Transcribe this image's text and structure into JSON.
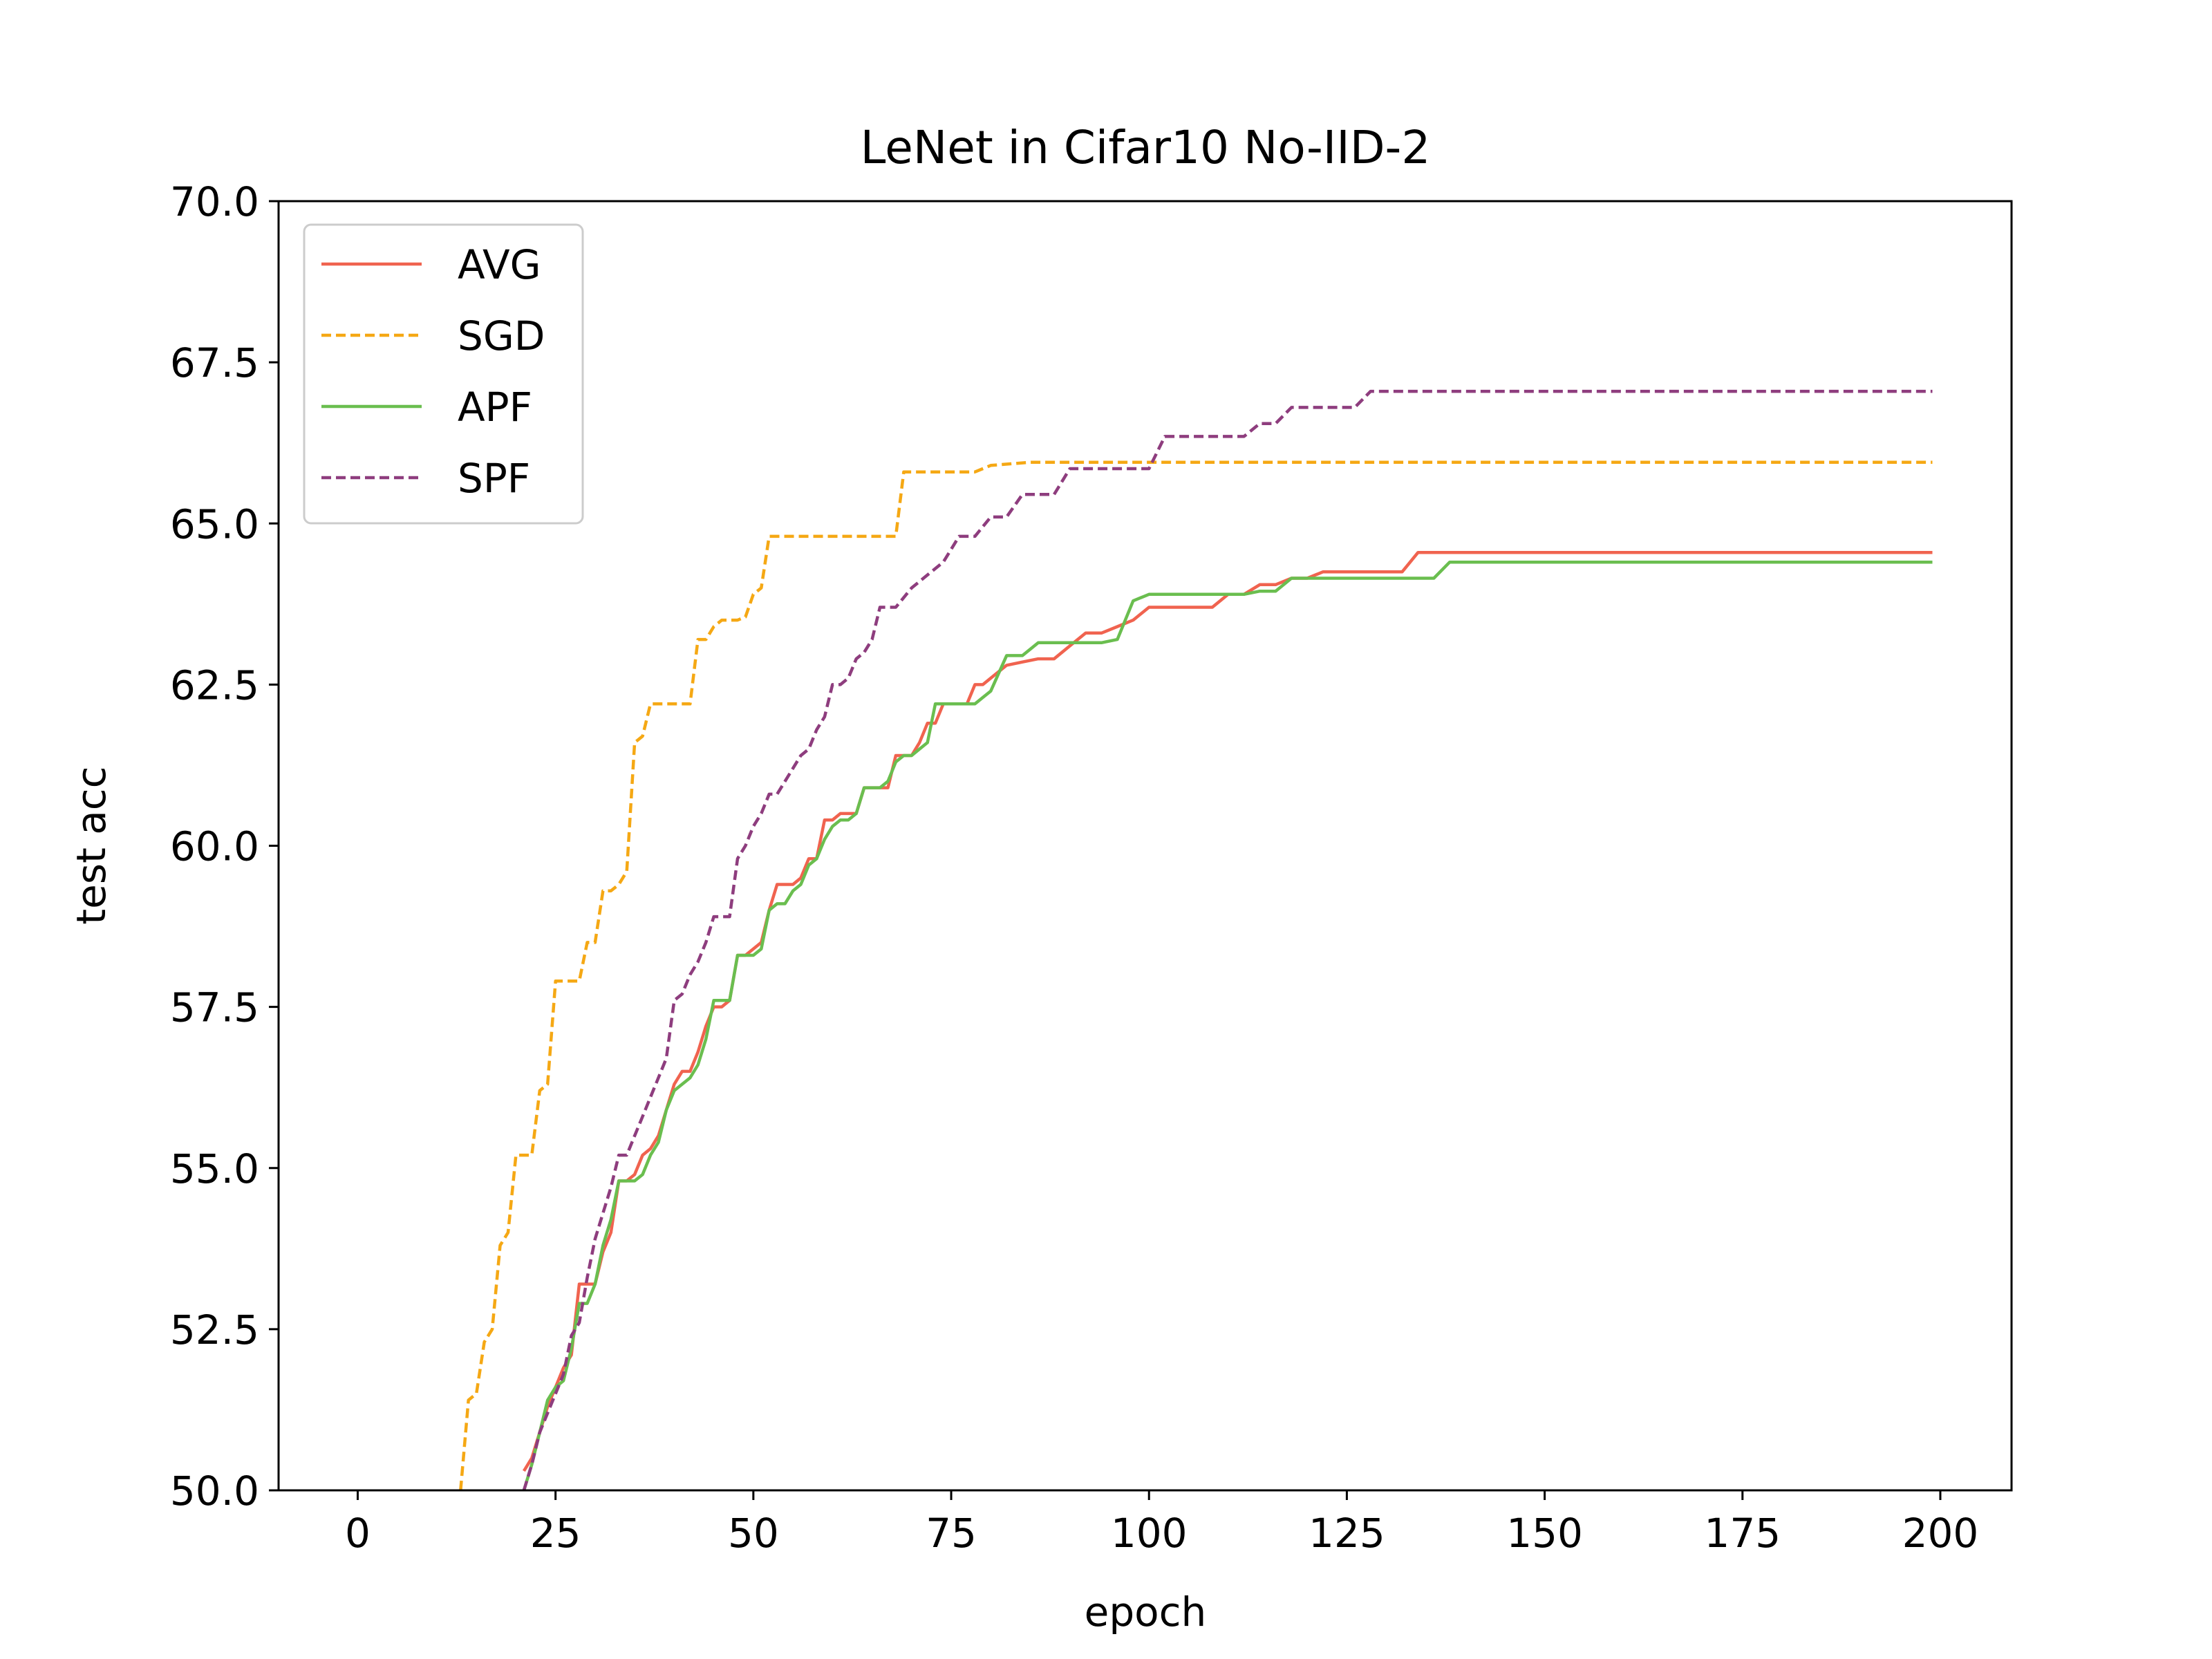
{
  "chart_data": {
    "type": "line",
    "title": "LeNet in Cifar10 No-IID-2",
    "xlabel": "epoch",
    "ylabel": "test acc",
    "xlim": [
      -10,
      209
    ],
    "ylim": [
      50.0,
      70.0
    ],
    "x_ticks": [
      0,
      25,
      50,
      75,
      100,
      125,
      150,
      175,
      200
    ],
    "x_tick_labels": [
      "0",
      "25",
      "50",
      "75",
      "100",
      "125",
      "150",
      "175",
      "200"
    ],
    "y_ticks": [
      50.0,
      52.5,
      55.0,
      57.5,
      60.0,
      62.5,
      65.0,
      67.5,
      70.0
    ],
    "y_tick_labels": [
      "50.0",
      "52.5",
      "55.0",
      "57.5",
      "60.0",
      "62.5",
      "65.0",
      "67.5",
      "70.0"
    ],
    "grid": false,
    "legend_position": "upper left",
    "series": [
      {
        "name": "AVG",
        "color": "#f0634f",
        "dash": "solid",
        "x": [
          21,
          22,
          23,
          24,
          25,
          26,
          27,
          28,
          29,
          30,
          31,
          32,
          33,
          34,
          35,
          36,
          37,
          38,
          39,
          40,
          41,
          42,
          43,
          44,
          45,
          46,
          47,
          48,
          49,
          50,
          51,
          52,
          53,
          54,
          55,
          56,
          57,
          58,
          59,
          60,
          61,
          62,
          63,
          64,
          65,
          66,
          67,
          68,
          69,
          70,
          71,
          72,
          73,
          74,
          75,
          76,
          77,
          78,
          79,
          80,
          82,
          84,
          86,
          88,
          90,
          92,
          94,
          96,
          98,
          100,
          102,
          104,
          106,
          108,
          110,
          112,
          114,
          116,
          118,
          120,
          122,
          124,
          126,
          128,
          130,
          132,
          134,
          136,
          140,
          150,
          160,
          170,
          180,
          190,
          199
        ],
        "y": [
          50.3,
          50.5,
          50.9,
          51.3,
          51.6,
          51.9,
          52.1,
          53.2,
          53.2,
          53.2,
          53.7,
          54.0,
          54.8,
          54.8,
          54.9,
          55.2,
          55.3,
          55.5,
          55.9,
          56.3,
          56.5,
          56.5,
          56.8,
          57.2,
          57.5,
          57.5,
          57.6,
          58.3,
          58.3,
          58.4,
          58.5,
          59.0,
          59.4,
          59.4,
          59.4,
          59.5,
          59.8,
          59.8,
          60.4,
          60.4,
          60.5,
          60.5,
          60.5,
          60.9,
          60.9,
          60.9,
          60.9,
          61.4,
          61.4,
          61.4,
          61.6,
          61.9,
          61.9,
          62.2,
          62.2,
          62.2,
          62.2,
          62.5,
          62.5,
          62.6,
          62.8,
          62.85,
          62.9,
          62.9,
          63.1,
          63.3,
          63.3,
          63.4,
          63.5,
          63.7,
          63.7,
          63.7,
          63.7,
          63.7,
          63.9,
          63.9,
          64.05,
          64.05,
          64.15,
          64.15,
          64.25,
          64.25,
          64.25,
          64.25,
          64.25,
          64.25,
          64.55,
          64.55,
          64.55,
          64.55,
          64.55,
          64.55,
          64.55,
          64.55,
          64.55
        ]
      },
      {
        "name": "SGD",
        "color": "#f5a814",
        "dash": "dashed",
        "x": [
          13,
          14,
          15,
          16,
          17,
          18,
          19,
          20,
          21,
          22,
          23,
          24,
          25,
          26,
          27,
          28,
          29,
          30,
          31,
          32,
          33,
          34,
          35,
          36,
          37,
          38,
          39,
          40,
          41,
          42,
          43,
          44,
          45,
          46,
          47,
          48,
          49,
          50,
          51,
          52,
          53,
          54,
          55,
          56,
          57,
          58,
          60,
          62,
          64,
          66,
          68,
          69,
          70,
          72,
          74,
          76,
          78,
          80,
          85,
          90,
          95,
          100,
          110,
          120,
          130,
          140,
          150,
          160,
          170,
          180,
          190,
          199
        ],
        "y": [
          50.0,
          51.4,
          51.5,
          52.3,
          52.5,
          53.8,
          54.0,
          55.2,
          55.2,
          55.2,
          56.2,
          56.3,
          57.9,
          57.9,
          57.9,
          57.9,
          58.5,
          58.5,
          59.3,
          59.3,
          59.4,
          59.6,
          61.6,
          61.7,
          62.2,
          62.2,
          62.2,
          62.2,
          62.2,
          62.2,
          63.2,
          63.2,
          63.4,
          63.5,
          63.5,
          63.5,
          63.55,
          63.9,
          64.0,
          64.8,
          64.8,
          64.8,
          64.8,
          64.8,
          64.8,
          64.8,
          64.8,
          64.8,
          64.8,
          64.8,
          64.8,
          65.8,
          65.8,
          65.8,
          65.8,
          65.8,
          65.8,
          65.9,
          65.95,
          65.95,
          65.95,
          65.95,
          65.95,
          65.95,
          65.95,
          65.95,
          65.95,
          65.95,
          65.95,
          65.95,
          65.95,
          65.95
        ]
      },
      {
        "name": "APF",
        "color": "#6abe4f",
        "dash": "solid",
        "x": [
          21,
          22,
          23,
          24,
          25,
          26,
          27,
          28,
          29,
          30,
          31,
          32,
          33,
          34,
          35,
          36,
          37,
          38,
          39,
          40,
          41,
          42,
          43,
          44,
          45,
          46,
          47,
          48,
          49,
          50,
          51,
          52,
          53,
          54,
          55,
          56,
          57,
          58,
          59,
          60,
          61,
          62,
          63,
          64,
          65,
          66,
          67,
          68,
          69,
          70,
          71,
          72,
          73,
          74,
          75,
          76,
          77,
          78,
          79,
          80,
          82,
          84,
          86,
          88,
          90,
          92,
          94,
          96,
          98,
          100,
          102,
          104,
          106,
          108,
          110,
          112,
          114,
          116,
          118,
          120,
          122,
          124,
          126,
          128,
          130,
          132,
          134,
          136,
          138,
          140,
          150,
          160,
          170,
          180,
          190,
          199
        ],
        "y": [
          50.0,
          50.4,
          50.9,
          51.4,
          51.6,
          51.7,
          52.2,
          52.9,
          52.9,
          53.2,
          53.8,
          54.2,
          54.8,
          54.8,
          54.8,
          54.9,
          55.2,
          55.4,
          55.9,
          56.2,
          56.3,
          56.4,
          56.6,
          57.0,
          57.6,
          57.6,
          57.6,
          58.3,
          58.3,
          58.3,
          58.4,
          59.0,
          59.1,
          59.1,
          59.3,
          59.4,
          59.7,
          59.8,
          60.1,
          60.3,
          60.4,
          60.4,
          60.5,
          60.9,
          60.9,
          60.9,
          61.0,
          61.3,
          61.4,
          61.4,
          61.5,
          61.6,
          62.2,
          62.2,
          62.2,
          62.2,
          62.2,
          62.2,
          62.3,
          62.4,
          62.95,
          62.95,
          63.15,
          63.15,
          63.15,
          63.15,
          63.15,
          63.2,
          63.8,
          63.9,
          63.9,
          63.9,
          63.9,
          63.9,
          63.9,
          63.9,
          63.95,
          63.95,
          64.15,
          64.15,
          64.15,
          64.15,
          64.15,
          64.15,
          64.15,
          64.15,
          64.15,
          64.15,
          64.4,
          64.4,
          64.4,
          64.4,
          64.4,
          64.4,
          64.4,
          64.4
        ]
      },
      {
        "name": "SPF",
        "color": "#8e3d7e",
        "dash": "dashed",
        "x": [
          21,
          22,
          23,
          24,
          25,
          26,
          27,
          28,
          29,
          30,
          31,
          32,
          33,
          34,
          35,
          36,
          37,
          38,
          39,
          40,
          41,
          42,
          43,
          44,
          45,
          46,
          47,
          48,
          49,
          50,
          51,
          52,
          53,
          54,
          55,
          56,
          57,
          58,
          59,
          60,
          61,
          62,
          63,
          64,
          65,
          66,
          67,
          68,
          70,
          72,
          74,
          76,
          78,
          80,
          82,
          84,
          86,
          88,
          90,
          92,
          94,
          96,
          98,
          100,
          102,
          104,
          106,
          108,
          110,
          112,
          114,
          116,
          118,
          120,
          122,
          124,
          126,
          128,
          130,
          140,
          150,
          160,
          170,
          180,
          190,
          199
        ],
        "y": [
          50.0,
          50.4,
          50.9,
          51.2,
          51.5,
          51.8,
          52.4,
          52.6,
          53.3,
          53.9,
          54.3,
          54.7,
          55.2,
          55.2,
          55.5,
          55.8,
          56.1,
          56.4,
          56.7,
          57.6,
          57.7,
          58.0,
          58.2,
          58.5,
          58.9,
          58.9,
          58.9,
          59.8,
          60.0,
          60.3,
          60.5,
          60.8,
          60.8,
          61.0,
          61.2,
          61.4,
          61.5,
          61.8,
          62.0,
          62.5,
          62.5,
          62.6,
          62.9,
          63.0,
          63.2,
          63.7,
          63.7,
          63.7,
          64.0,
          64.2,
          64.4,
          64.8,
          64.8,
          65.1,
          65.1,
          65.45,
          65.45,
          65.45,
          65.85,
          65.85,
          65.85,
          65.85,
          65.85,
          65.85,
          66.35,
          66.35,
          66.35,
          66.35,
          66.35,
          66.35,
          66.55,
          66.55,
          66.8,
          66.8,
          66.8,
          66.8,
          66.8,
          67.05,
          67.05,
          67.05,
          67.05,
          67.05,
          67.05,
          67.05,
          67.05,
          67.05
        ]
      }
    ]
  }
}
